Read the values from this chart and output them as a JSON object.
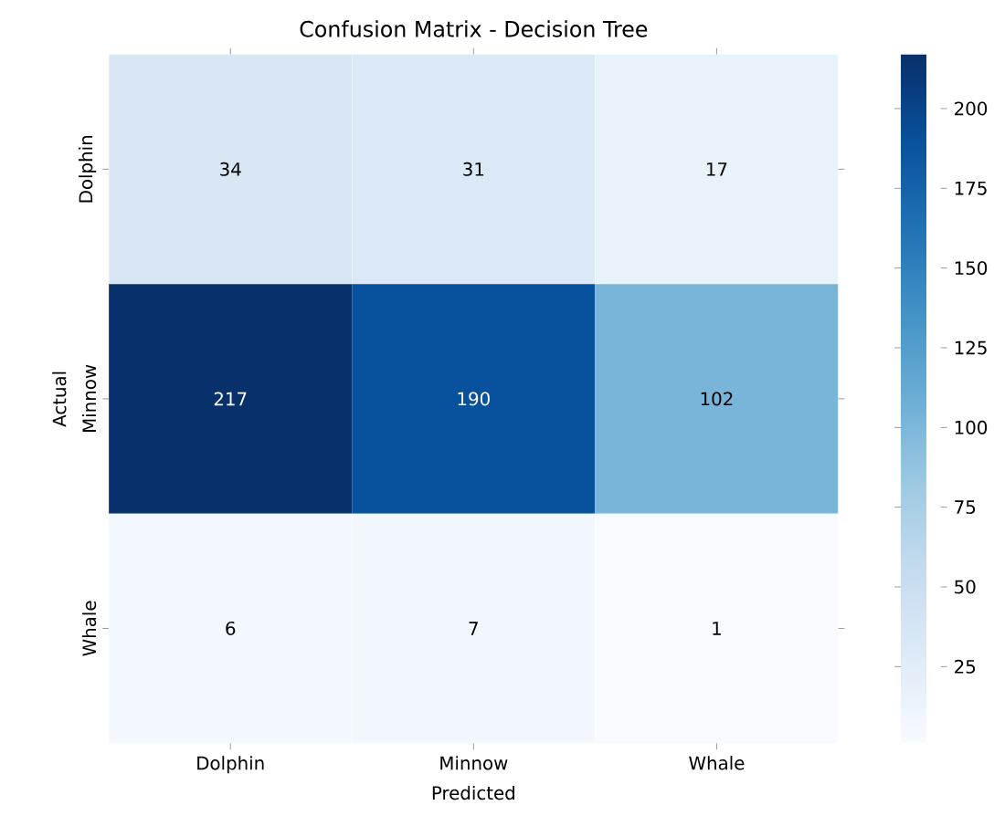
{
  "chart_data": {
    "type": "heatmap",
    "title": "Confusion Matrix - Decision Tree",
    "xlabel": "Predicted",
    "ylabel": "Actual",
    "categories": [
      "Dolphin",
      "Minnow",
      "Whale"
    ],
    "y_categories": [
      "Dolphin",
      "Minnow",
      "Whale"
    ],
    "cells": [
      [
        34,
        31,
        17
      ],
      [
        217,
        190,
        102
      ],
      [
        6,
        7,
        1
      ]
    ],
    "clim": [
      1,
      217
    ],
    "cticks": [
      25,
      50,
      75,
      100,
      125,
      150,
      175,
      200
    ],
    "data_labels": true
  }
}
